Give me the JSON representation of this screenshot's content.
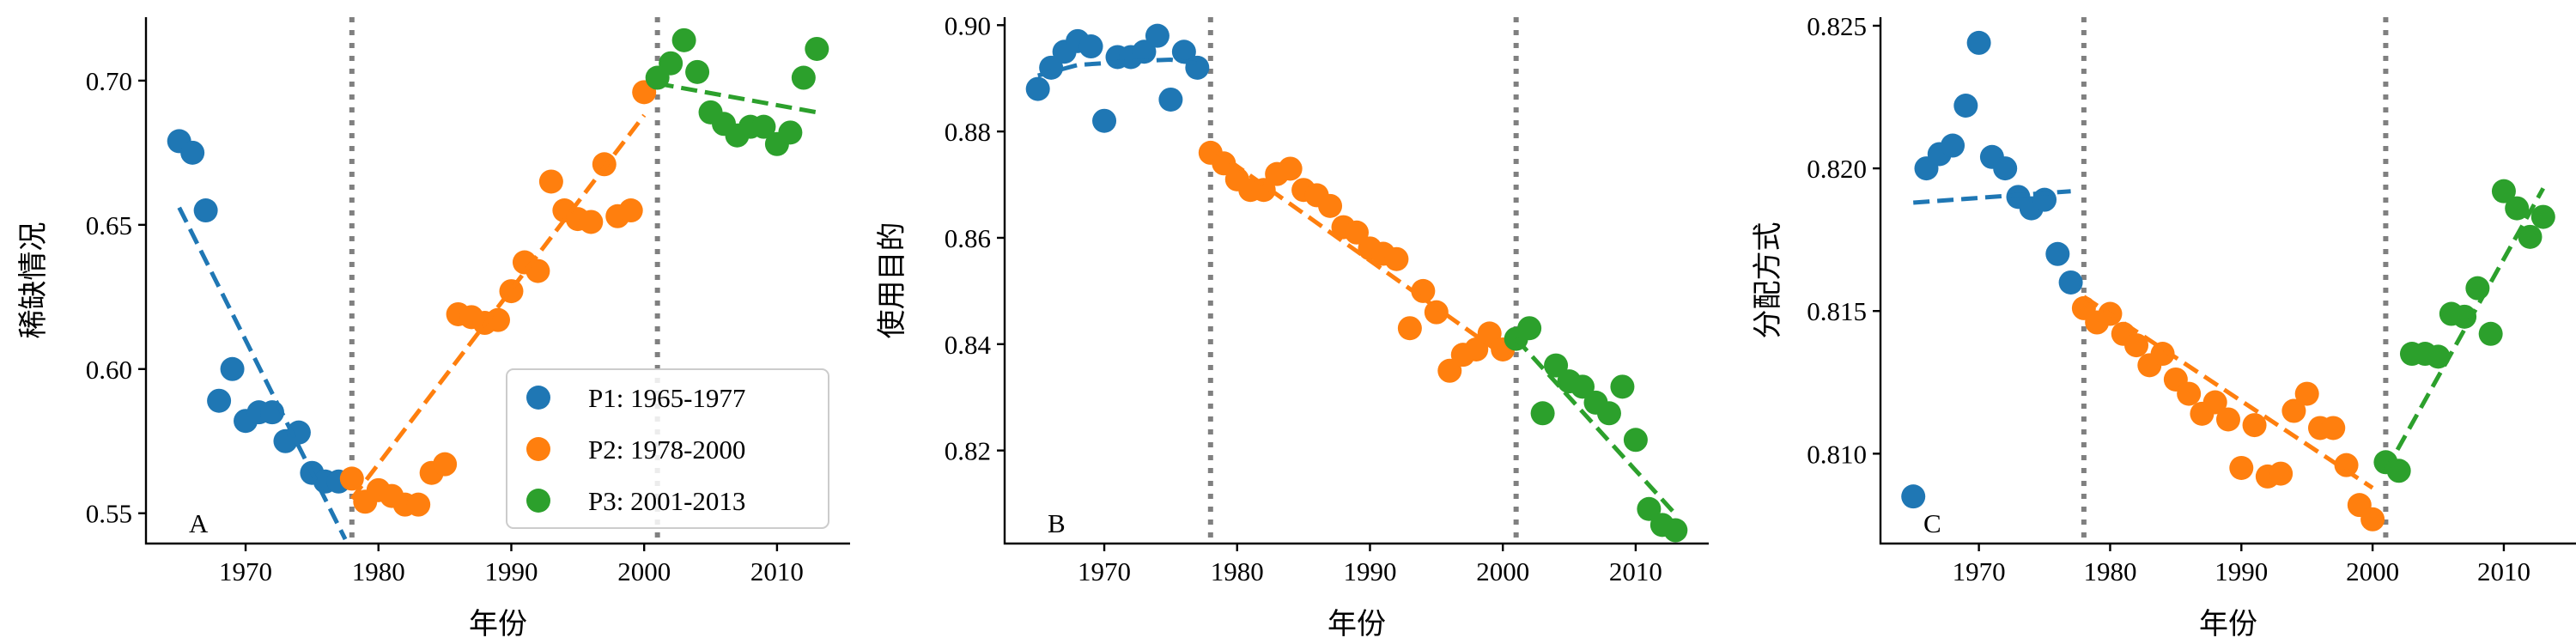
{
  "chart_data": [
    {
      "type": "scatter",
      "panel_label": "A",
      "xlabel": "年份",
      "ylabel": "稀缺情况",
      "xlim": [
        1962.5,
        2015.5
      ],
      "ylim": [
        0.5395,
        0.722
      ],
      "xticks": [
        1970,
        1980,
        1990,
        2000,
        2010
      ],
      "yticks": [
        0.55,
        0.6,
        0.65,
        0.7
      ],
      "ytick_labels": [
        "0.55",
        "0.60",
        "0.65",
        "0.70"
      ],
      "breakpoints": [
        1978,
        2001
      ],
      "legend": {
        "position": "lower-right",
        "entries": [
          "P1: 1965-1977",
          "P2: 1978-2000",
          "P3: 2001-2013"
        ]
      },
      "series": [
        {
          "name": "P1: 1965-1977",
          "color": "#1f77b4",
          "x": [
            1965,
            1966,
            1967,
            1968,
            1969,
            1970,
            1971,
            1972,
            1973,
            1974,
            1975,
            1976,
            1977
          ],
          "y": [
            0.679,
            0.675,
            0.655,
            0.589,
            0.6,
            0.582,
            0.585,
            0.585,
            0.575,
            0.578,
            0.564,
            0.561,
            0.561
          ],
          "trend": [
            [
              1965,
              0.656
            ],
            [
              1977.5,
              0.541
            ]
          ]
        },
        {
          "name": "P2: 1978-2000",
          "color": "#ff7f0e",
          "x": [
            1978,
            1979,
            1980,
            1981,
            1982,
            1983,
            1984,
            1985,
            1986,
            1987,
            1988,
            1989,
            1990,
            1991,
            1992,
            1993,
            1994,
            1995,
            1996,
            1997,
            1998,
            1999,
            2000
          ],
          "y": [
            0.562,
            0.554,
            0.558,
            0.556,
            0.553,
            0.553,
            0.564,
            0.567,
            0.619,
            0.618,
            0.616,
            0.617,
            0.627,
            0.637,
            0.634,
            0.665,
            0.655,
            0.652,
            0.651,
            0.671,
            0.653,
            0.655,
            0.696
          ],
          "trend": [
            [
              1978,
              0.555
            ],
            [
              2000,
              0.688
            ]
          ]
        },
        {
          "name": "P3: 2001-2013",
          "color": "#2ca02c",
          "x": [
            2001,
            2002,
            2003,
            2004,
            2005,
            2006,
            2007,
            2008,
            2009,
            2010,
            2011,
            2012,
            2013
          ],
          "y": [
            0.701,
            0.706,
            0.714,
            0.703,
            0.689,
            0.685,
            0.681,
            0.684,
            0.684,
            0.678,
            0.682,
            0.701,
            0.711
          ],
          "trend": [
            [
              2001,
              0.699
            ],
            [
              2013,
              0.689
            ]
          ]
        }
      ]
    },
    {
      "type": "scatter",
      "panel_label": "B",
      "xlabel": "年份",
      "ylabel": "使用目的",
      "xlim": [
        1962.5,
        2015.5
      ],
      "ylim": [
        0.8025,
        0.9015
      ],
      "xticks": [
        1970,
        1980,
        1990,
        2000,
        2010
      ],
      "yticks": [
        0.82,
        0.84,
        0.86,
        0.88,
        0.9
      ],
      "ytick_labels": [
        "0.82",
        "0.84",
        "0.86",
        "0.88",
        "0.90"
      ],
      "breakpoints": [
        1978,
        2001
      ],
      "series": [
        {
          "name": "P1: 1965-1977",
          "color": "#1f77b4",
          "x": [
            1965,
            1966,
            1967,
            1968,
            1969,
            1970,
            1971,
            1972,
            1973,
            1974,
            1975,
            1976,
            1977
          ],
          "y": [
            0.888,
            0.892,
            0.895,
            0.897,
            0.896,
            0.882,
            0.894,
            0.894,
            0.895,
            0.898,
            0.886,
            0.895,
            0.892
          ],
          "trend": [
            [
              1965,
              0.8905
            ],
            [
              1968,
              0.8925
            ],
            [
              1972,
              0.8932
            ],
            [
              1975,
              0.8935
            ],
            [
              1977,
              0.8928
            ]
          ]
        },
        {
          "name": "P2: 1978-2000",
          "color": "#ff7f0e",
          "x": [
            1978,
            1979,
            1980,
            1981,
            1982,
            1983,
            1984,
            1985,
            1986,
            1987,
            1988,
            1989,
            1990,
            1991,
            1992,
            1993,
            1994,
            1995,
            1996,
            1997,
            1998,
            1999,
            2000
          ],
          "y": [
            0.876,
            0.874,
            0.871,
            0.869,
            0.869,
            0.872,
            0.873,
            0.869,
            0.868,
            0.866,
            0.862,
            0.861,
            0.858,
            0.857,
            0.856,
            0.843,
            0.85,
            0.846,
            0.835,
            0.838,
            0.839,
            0.842,
            0.839
          ],
          "trend": [
            [
              1978,
              0.877
            ],
            [
              2000,
              0.838
            ]
          ]
        },
        {
          "name": "P3: 2001-2013",
          "color": "#2ca02c",
          "x": [
            2001,
            2002,
            2003,
            2004,
            2005,
            2006,
            2007,
            2008,
            2009,
            2010,
            2011,
            2012,
            2013
          ],
          "y": [
            0.841,
            0.843,
            0.827,
            0.836,
            0.833,
            0.832,
            0.829,
            0.827,
            0.832,
            0.822,
            0.809,
            0.806,
            0.805
          ],
          "trend": [
            [
              2001,
              0.841
            ],
            [
              2013,
              0.808
            ]
          ]
        }
      ]
    },
    {
      "type": "scatter",
      "panel_label": "C",
      "xlabel": "年份",
      "ylabel": "分配方式",
      "xlim": [
        1962.5,
        2015.5
      ],
      "ylim": [
        0.80685,
        0.8253
      ],
      "xticks": [
        1970,
        1980,
        1990,
        2000,
        2010
      ],
      "yticks": [
        0.81,
        0.815,
        0.82,
        0.825
      ],
      "ytick_labels": [
        "0.810",
        "0.815",
        "0.820",
        "0.825"
      ],
      "breakpoints": [
        1978,
        2001
      ],
      "series": [
        {
          "name": "P1: 1965-1977",
          "color": "#1f77b4",
          "x": [
            1965,
            1966,
            1967,
            1968,
            1969,
            1970,
            1971,
            1972,
            1973,
            1974,
            1975,
            1976,
            1977
          ],
          "y": [
            0.8085,
            0.82,
            0.8205,
            0.8208,
            0.8222,
            0.8244,
            0.8204,
            0.82,
            0.819,
            0.8186,
            0.8189,
            0.817,
            0.816
          ],
          "trend": [
            [
              1965,
              0.8188
            ],
            [
              1977,
              0.8192
            ]
          ]
        },
        {
          "name": "P2: 1978-2000",
          "color": "#ff7f0e",
          "x": [
            1978,
            1979,
            1980,
            1981,
            1982,
            1983,
            1984,
            1985,
            1986,
            1987,
            1988,
            1989,
            1990,
            1991,
            1992,
            1993,
            1994,
            1995,
            1996,
            1997,
            1998,
            1999,
            2000
          ],
          "y": [
            0.8151,
            0.8146,
            0.8149,
            0.8142,
            0.8138,
            0.8131,
            0.8135,
            0.8126,
            0.8121,
            0.8114,
            0.8118,
            0.8112,
            0.8095,
            0.811,
            0.8092,
            0.8093,
            0.8115,
            0.8121,
            0.8109,
            0.8109,
            0.8096,
            0.8082,
            0.8077
          ],
          "trend": [
            [
              1978,
              0.8155
            ],
            [
              2000,
              0.8088
            ]
          ]
        },
        {
          "name": "P3: 2001-2013",
          "color": "#2ca02c",
          "x": [
            2001,
            2002,
            2003,
            2004,
            2005,
            2006,
            2007,
            2008,
            2009,
            2010,
            2011,
            2012,
            2013
          ],
          "y": [
            0.8097,
            0.8094,
            0.8135,
            0.8135,
            0.8134,
            0.8149,
            0.8148,
            0.8158,
            0.8142,
            0.8192,
            0.8186,
            0.8176,
            0.8183
          ],
          "trend": [
            [
              2001,
              0.8094
            ],
            [
              2013,
              0.8193
            ]
          ]
        }
      ]
    }
  ]
}
